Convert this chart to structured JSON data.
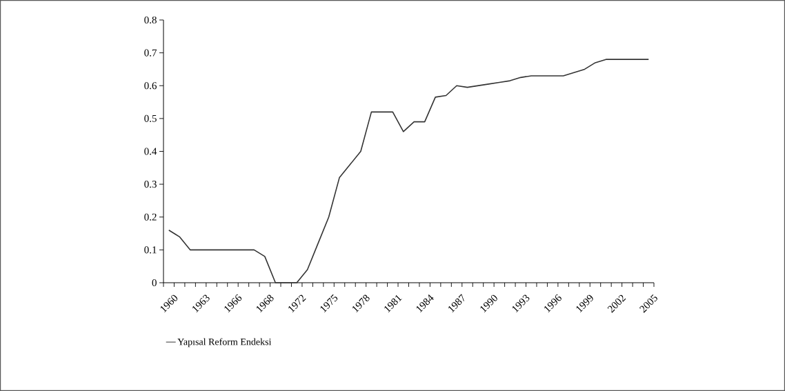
{
  "chart_data": {
    "type": "line",
    "categories": [
      "1960",
      null,
      null,
      "1963",
      null,
      null,
      "1966",
      null,
      null,
      "1968",
      null,
      null,
      "1972",
      null,
      null,
      "1975",
      null,
      null,
      "1978",
      null,
      null,
      "1981",
      null,
      null,
      "1984",
      null,
      null,
      "1987",
      null,
      null,
      "1990",
      null,
      null,
      "1993",
      null,
      null,
      "1996",
      null,
      null,
      "1999",
      null,
      null,
      "2002",
      null,
      null,
      "2005"
    ],
    "series": [
      {
        "name": "Yapısal Reform Endeksi",
        "color": "#333333",
        "values": [
          0.16,
          0.14,
          0.1,
          0.1,
          0.1,
          0.1,
          0.1,
          0.1,
          0.1,
          0.08,
          0.0,
          0.0,
          0.0,
          0.04,
          0.12,
          0.2,
          0.32,
          0.36,
          0.4,
          0.52,
          0.52,
          0.52,
          0.46,
          0.49,
          0.49,
          0.565,
          0.57,
          0.6,
          0.595,
          0.6,
          0.605,
          0.61,
          0.615,
          0.625,
          0.63,
          0.63,
          0.63,
          0.63,
          0.64,
          0.65,
          0.67,
          0.68,
          0.68,
          0.68,
          0.68,
          0.68
        ]
      }
    ],
    "ylim": [
      0,
      0.8
    ],
    "yticks": [
      0,
      0.1,
      0.2,
      0.3,
      0.4,
      0.5,
      0.6,
      0.7,
      0.8
    ],
    "legend": "bottom left"
  }
}
